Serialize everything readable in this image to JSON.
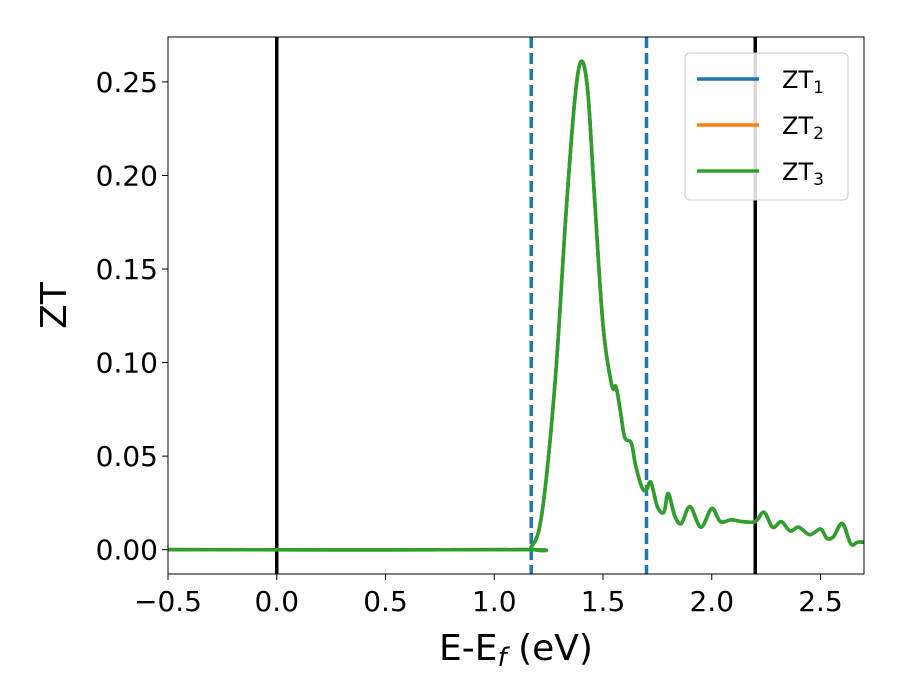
{
  "chart_data": {
    "type": "line",
    "xlabel": "E-E",
    "xlabel_sub": "f",
    "xlabel_unit": " (eV)",
    "ylabel": "ZT",
    "xlim": [
      -0.5,
      2.7
    ],
    "ylim": [
      -0.013,
      0.274
    ],
    "xticks": [
      -0.5,
      0.0,
      0.5,
      1.0,
      1.5,
      2.0,
      2.5
    ],
    "xtick_labels": [
      "−0.5",
      "0.0",
      "0.5",
      "1.0",
      "1.5",
      "2.0",
      "2.5"
    ],
    "yticks": [
      0.0,
      0.05,
      0.1,
      0.15,
      0.2,
      0.25
    ],
    "ytick_labels": [
      "0.00",
      "0.05",
      "0.10",
      "0.15",
      "0.20",
      "0.25"
    ],
    "grid": false,
    "legend_position": "top-right",
    "vertical_lines": [
      {
        "x": 0.0,
        "style": "solid",
        "color": "#000000"
      },
      {
        "x": 2.2,
        "style": "solid",
        "color": "#000000"
      },
      {
        "x": 1.17,
        "style": "dashed",
        "color": "#1f77b4"
      },
      {
        "x": 1.7,
        "style": "dashed",
        "color": "#1f77b4"
      }
    ],
    "series": [
      {
        "name": "ZT",
        "sub": "1",
        "color": "#1f77b4",
        "x": [
          -0.5,
          1.1,
          1.17,
          1.22,
          1.28,
          1.33,
          1.37,
          1.4,
          1.43,
          1.46,
          1.5,
          1.54,
          1.56,
          1.58,
          1.6,
          1.63,
          1.65,
          1.68,
          1.7,
          1.72,
          1.75,
          1.78,
          1.8,
          1.83,
          1.86,
          1.9,
          1.95,
          2.0,
          2.04,
          2.09,
          2.14,
          2.2,
          2.24,
          2.28,
          2.32,
          2.36,
          2.4,
          2.45,
          2.5,
          2.53,
          2.56,
          2.6,
          2.64,
          2.67,
          2.7
        ],
        "y": [
          0.0,
          0.0,
          0.0015,
          0.02,
          0.09,
          0.18,
          0.24,
          0.261,
          0.245,
          0.19,
          0.12,
          0.088,
          0.087,
          0.074,
          0.06,
          0.057,
          0.045,
          0.033,
          0.032,
          0.036,
          0.023,
          0.02,
          0.03,
          0.018,
          0.014,
          0.023,
          0.012,
          0.022,
          0.015,
          0.016,
          0.015,
          0.015,
          0.02,
          0.012,
          0.015,
          0.01,
          0.012,
          0.008,
          0.011,
          0.006,
          0.007,
          0.014,
          0.003,
          0.004,
          0.004
        ]
      },
      {
        "name": "ZT",
        "sub": "2",
        "color": "#ff7f0e",
        "x": [
          -0.5,
          1.1,
          1.17,
          1.22,
          1.28,
          1.33,
          1.37,
          1.4,
          1.43,
          1.46,
          1.5,
          1.54,
          1.56,
          1.58,
          1.6,
          1.63,
          1.65,
          1.68,
          1.7,
          1.72,
          1.75,
          1.78,
          1.8,
          1.83,
          1.86,
          1.9,
          1.95,
          2.0,
          2.04,
          2.09,
          2.14,
          2.2,
          2.24,
          2.28,
          2.32,
          2.36,
          2.4,
          2.45,
          2.5,
          2.53,
          2.56,
          2.6,
          2.64,
          2.67,
          2.7
        ],
        "y": [
          0.0,
          0.0,
          0.0015,
          0.02,
          0.09,
          0.18,
          0.24,
          0.261,
          0.245,
          0.19,
          0.12,
          0.088,
          0.087,
          0.074,
          0.06,
          0.057,
          0.045,
          0.033,
          0.032,
          0.036,
          0.023,
          0.02,
          0.03,
          0.018,
          0.014,
          0.023,
          0.012,
          0.022,
          0.015,
          0.016,
          0.015,
          0.015,
          0.02,
          0.012,
          0.015,
          0.01,
          0.012,
          0.008,
          0.011,
          0.006,
          0.007,
          0.014,
          0.003,
          0.004,
          0.004
        ]
      },
      {
        "name": "ZT",
        "sub": "3",
        "color": "#2ca02c",
        "x": [
          -0.5,
          1.1,
          1.17,
          1.22,
          1.28,
          1.33,
          1.37,
          1.4,
          1.43,
          1.46,
          1.5,
          1.54,
          1.56,
          1.58,
          1.6,
          1.63,
          1.65,
          1.68,
          1.7,
          1.72,
          1.75,
          1.78,
          1.8,
          1.83,
          1.86,
          1.9,
          1.95,
          2.0,
          2.04,
          2.09,
          2.14,
          2.2,
          2.24,
          2.28,
          2.32,
          2.36,
          2.4,
          2.45,
          2.5,
          2.53,
          2.56,
          2.6,
          2.64,
          2.67,
          2.7
        ],
        "y": [
          0.0,
          0.0,
          0.0015,
          0.02,
          0.09,
          0.18,
          0.24,
          0.261,
          0.245,
          0.19,
          0.12,
          0.088,
          0.087,
          0.074,
          0.06,
          0.057,
          0.045,
          0.033,
          0.032,
          0.036,
          0.023,
          0.02,
          0.03,
          0.018,
          0.014,
          0.023,
          0.012,
          0.022,
          0.015,
          0.016,
          0.015,
          0.015,
          0.02,
          0.012,
          0.015,
          0.01,
          0.012,
          0.008,
          0.011,
          0.006,
          0.007,
          0.014,
          0.003,
          0.004,
          0.004
        ]
      }
    ]
  }
}
